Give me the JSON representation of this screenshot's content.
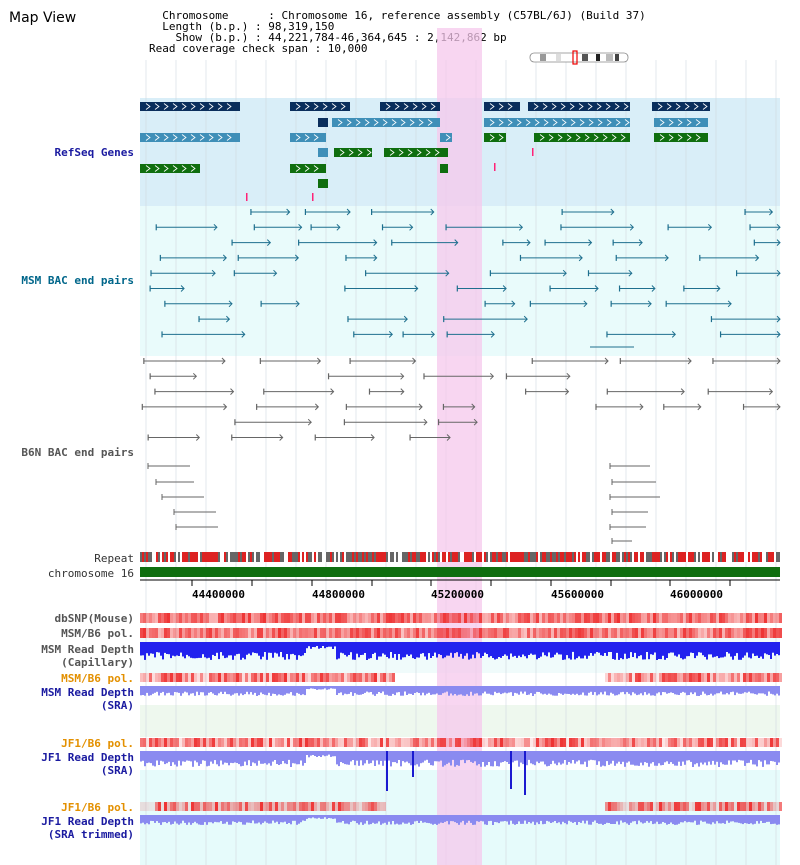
{
  "view": {
    "title": "Map View",
    "info_lines": [
      "  Chromosome      : Chromosome 16, reference assembly (C57BL/6J) (Build 37)",
      "  Length (b.p.) : 98,319,150",
      "    Show (b.p.) : 44,221,784-46,364,645 : 2,142,862 bp",
      "Read coverage check span : 10,000"
    ]
  },
  "tracks": {
    "refseq": "RefSeq Genes",
    "msm_bac": "MSM BAC end pairs",
    "b6n_bac": "B6N BAC end pairs",
    "repeat": "Repeat",
    "chromosome": "chromosome 16",
    "dbsnp": "dbSNP(Mouse)",
    "msm_b6_pol_1": "MSM/B6 pol.",
    "msm_depth_cap_1": "MSM Read Depth",
    "msm_depth_cap_2": "(Capillary)",
    "msm_b6_pol_2": "MSM/B6 pol.",
    "msm_depth_sra_1": "MSM Read Depth",
    "msm_depth_sra_2": "(SRA)",
    "jf1_pol_1": "JF1/B6 pol.",
    "jf1_depth_sra_1": "JF1 Read Depth",
    "jf1_depth_sra_2": "(SRA)",
    "jf1_pol_2": "JF1/B6 pol.",
    "jf1_depth_trim_1": "JF1 Read Depth",
    "jf1_depth_trim_2": "(SRA trimmed)"
  },
  "axis": {
    "ticks": [
      "44400000",
      "44800000",
      "45200000",
      "45600000",
      "46000000"
    ]
  },
  "colors": {
    "refseq_bg": "#d9eef8",
    "bac_bg": "#e9fbfb",
    "highlight": "#f5c8ec",
    "gene_dark": "#0a2e5c",
    "gene_mid": "#3f8fb8",
    "gene_green": "#0f6e0f",
    "msm_line": "#1e6f8e",
    "b6n_line": "#666666",
    "chrom_green": "#0f6e0f",
    "snp_red": "#ee3333",
    "depth_blue": "#2222ee",
    "depth_light": "#8a8af0"
  }
}
